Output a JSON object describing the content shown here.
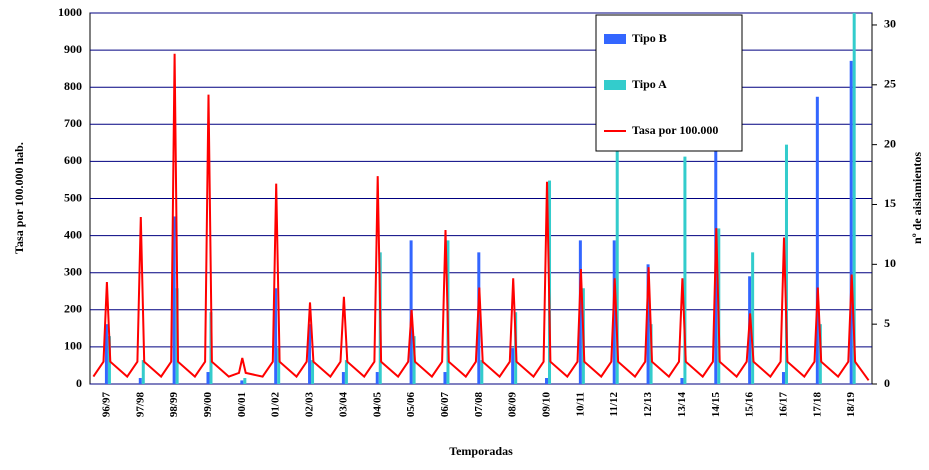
{
  "chart_data": {
    "type": "combo",
    "xlabel": "Temporadas",
    "ylabel": "Tasa por 100.000 hab.",
    "y2label": "nº de aislamientos",
    "categories": [
      "96/97",
      "97/98",
      "98/99",
      "99/00",
      "00/01",
      "01/02",
      "02/03",
      "03/04",
      "04/05",
      "05/06",
      "06/07",
      "07/08",
      "08/09",
      "09/10",
      "10/11",
      "11/12",
      "12/13",
      "13/14",
      "14/15",
      "15/16",
      "16/17",
      "17/18",
      "18/19"
    ],
    "xlim": [
      -0.5,
      22.6
    ],
    "ylim": [
      0,
      1000
    ],
    "yticks": [
      0,
      100,
      200,
      300,
      400,
      500,
      600,
      700,
      800,
      900,
      1000
    ],
    "y2lim": [
      0,
      31
    ],
    "y2ticks": [
      0,
      5,
      10,
      15,
      20,
      25,
      30
    ],
    "grid": true,
    "legend": "upper right",
    "series": [
      {
        "name": "Tipo B",
        "color": "#3366ff",
        "axis": "y2",
        "type": "bar",
        "values": [
          5,
          0.5,
          14,
          1,
          0.3,
          8,
          5,
          1,
          1,
          12,
          1,
          11,
          3,
          0.5,
          12,
          12,
          10,
          0.5,
          20,
          9,
          1,
          24,
          27
        ]
      },
      {
        "name": "Tipo A",
        "color": "#33cccc",
        "axis": "y2",
        "type": "bar",
        "values": [
          4,
          2,
          8,
          6,
          0.5,
          3,
          2,
          2,
          11,
          4,
          12,
          2,
          6,
          17,
          8,
          21,
          5,
          19,
          13,
          11,
          20,
          5,
          31
        ]
      },
      {
        "name": "Tasa por 100.000",
        "color": "#ff0000",
        "type": "line",
        "x": [
          -0.4,
          -0.1,
          0,
          0.1,
          0.6,
          0.9,
          1,
          1.1,
          1.6,
          1.9,
          2,
          2.1,
          2.6,
          2.9,
          3,
          3.1,
          3.6,
          3.9,
          4,
          4.1,
          4.6,
          4.9,
          5,
          5.1,
          5.6,
          5.9,
          6,
          6.1,
          6.6,
          6.9,
          7,
          7.1,
          7.6,
          7.9,
          8,
          8.1,
          8.6,
          8.9,
          9,
          9.1,
          9.6,
          9.9,
          10,
          10.1,
          10.6,
          10.9,
          11,
          11.1,
          11.6,
          11.9,
          12,
          12.1,
          12.6,
          12.9,
          13,
          13.1,
          13.6,
          13.9,
          14,
          14.1,
          14.6,
          14.9,
          15,
          15.1,
          15.6,
          15.9,
          16,
          16.1,
          16.6,
          16.9,
          17,
          17.1,
          17.6,
          17.9,
          18,
          18.1,
          18.6,
          18.9,
          19,
          19.1,
          19.6,
          19.9,
          20,
          20.1,
          20.6,
          20.9,
          21,
          21.1,
          21.6,
          21.9,
          22,
          22.1,
          22.5
        ],
        "values": [
          20,
          60,
          275,
          60,
          20,
          60,
          450,
          60,
          20,
          60,
          890,
          60,
          20,
          60,
          780,
          60,
          20,
          30,
          70,
          30,
          20,
          60,
          540,
          60,
          20,
          60,
          220,
          60,
          20,
          60,
          235,
          60,
          20,
          60,
          560,
          60,
          20,
          60,
          200,
          60,
          20,
          60,
          415,
          60,
          20,
          60,
          260,
          60,
          20,
          60,
          285,
          60,
          20,
          60,
          545,
          60,
          20,
          60,
          310,
          60,
          20,
          60,
          285,
          60,
          20,
          60,
          315,
          60,
          20,
          60,
          285,
          60,
          20,
          60,
          420,
          60,
          20,
          60,
          190,
          60,
          20,
          60,
          395,
          60,
          20,
          60,
          260,
          60,
          20,
          60,
          295,
          60,
          10
        ]
      }
    ]
  }
}
